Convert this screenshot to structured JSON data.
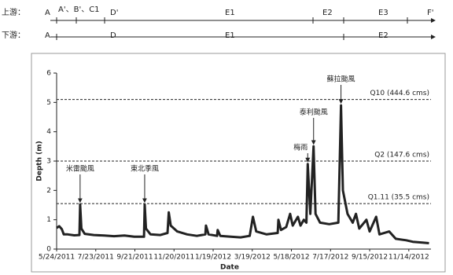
{
  "timeline": {
    "upstream": {
      "label": "上游：",
      "segments": [
        "A",
        "A'、B'、C1",
        "D'",
        "E1",
        "E2",
        "E3",
        "F'"
      ]
    },
    "downstream": {
      "label": "下游：",
      "segments": [
        "A",
        "D",
        "E1",
        "E2"
      ]
    }
  },
  "chart_data": {
    "type": "line",
    "xlabel": "Date",
    "ylabel": "Depth (m)",
    "xlim": [
      "2011-05-24",
      "2012-12-18"
    ],
    "xticks": [
      {
        "value": "2011-05-24",
        "label": "5/24/2011"
      },
      {
        "value": "2011-07-23",
        "label": "7/23/2011"
      },
      {
        "value": "2011-09-21",
        "label": "9/21/2011"
      },
      {
        "value": "2011-11-20",
        "label": "11/20/2011"
      },
      {
        "value": "2012-01-19",
        "label": "1/19/2012"
      },
      {
        "value": "2012-03-19",
        "label": "3/19/2012"
      },
      {
        "value": "2012-05-18",
        "label": "5/18/2012"
      },
      {
        "value": "2012-07-17",
        "label": "7/17/2012"
      },
      {
        "value": "2012-09-15",
        "label": "9/15/2012"
      },
      {
        "value": "2012-11-14",
        "label": "11/14/2012"
      }
    ],
    "ylim": [
      0,
      6
    ],
    "yticks": [
      0,
      1,
      2,
      3,
      4,
      5,
      6
    ],
    "x": [
      "2011-05-24",
      "2011-05-28",
      "2011-06-01",
      "2011-06-04",
      "2011-06-10",
      "2011-06-20",
      "2011-06-28",
      "2011-06-29",
      "2011-07-01",
      "2011-07-06",
      "2011-07-20",
      "2011-08-05",
      "2011-08-20",
      "2011-09-05",
      "2011-09-20",
      "2011-10-05",
      "2011-10-06",
      "2011-10-08",
      "2011-10-15",
      "2011-10-30",
      "2011-11-10",
      "2011-11-12",
      "2011-11-15",
      "2011-11-25",
      "2011-12-10",
      "2011-12-25",
      "2012-01-07",
      "2012-01-08",
      "2012-01-12",
      "2012-01-25",
      "2012-01-26",
      "2012-01-30",
      "2012-02-15",
      "2012-03-01",
      "2012-03-15",
      "2012-03-20",
      "2012-03-25",
      "2012-04-10",
      "2012-04-27",
      "2012-04-28",
      "2012-05-02",
      "2012-05-10",
      "2012-05-16",
      "2012-05-20",
      "2012-05-28",
      "2012-06-01",
      "2012-06-06",
      "2012-06-10",
      "2012-06-12",
      "2012-06-16",
      "2012-06-21",
      "2012-06-24",
      "2012-07-01",
      "2012-07-15",
      "2012-07-29",
      "2012-08-02",
      "2012-08-05",
      "2012-08-12",
      "2012-08-20",
      "2012-08-25",
      "2012-08-30",
      "2012-09-10",
      "2012-09-15",
      "2012-09-25",
      "2012-09-30",
      "2012-10-15",
      "2012-10-25",
      "2012-11-10",
      "2012-11-20",
      "2012-12-05",
      "2012-12-15"
    ],
    "series": [
      {
        "name": "Depth",
        "color": "#222222",
        "values": [
          0.72,
          0.78,
          0.68,
          0.5,
          0.5,
          0.47,
          0.48,
          1.52,
          0.7,
          0.52,
          0.48,
          0.46,
          0.44,
          0.46,
          0.42,
          0.42,
          1.52,
          0.7,
          0.5,
          0.48,
          0.55,
          1.25,
          0.8,
          0.6,
          0.5,
          0.45,
          0.5,
          0.8,
          0.5,
          0.45,
          0.65,
          0.45,
          0.42,
          0.4,
          0.45,
          1.1,
          0.6,
          0.5,
          0.55,
          1.0,
          0.65,
          0.75,
          1.2,
          0.8,
          1.1,
          0.8,
          1.0,
          0.9,
          2.9,
          1.2,
          3.5,
          1.2,
          0.9,
          0.85,
          0.9,
          4.9,
          2.0,
          1.2,
          0.9,
          1.2,
          0.7,
          1.0,
          0.6,
          1.1,
          0.5,
          0.6,
          0.35,
          0.3,
          0.25,
          0.22,
          0.2
        ]
      }
    ],
    "reference_lines": [
      {
        "label": "Q10 (444.6 cms)",
        "value": 5.1
      },
      {
        "label": "Q2 (147.6 cms)",
        "value": 3.0
      },
      {
        "label": "Q1.11 (35.5 cms)",
        "value": 1.55
      }
    ],
    "annotations": [
      {
        "text": "米雷颱風",
        "x": "2011-06-29"
      },
      {
        "text": "東北季風",
        "x": "2011-10-06"
      },
      {
        "text": "梅雨",
        "x": "2012-06-12"
      },
      {
        "text": "泰利颱風",
        "x": "2012-06-21"
      },
      {
        "text": "蘇拉颱風",
        "x": "2012-08-02"
      }
    ]
  }
}
